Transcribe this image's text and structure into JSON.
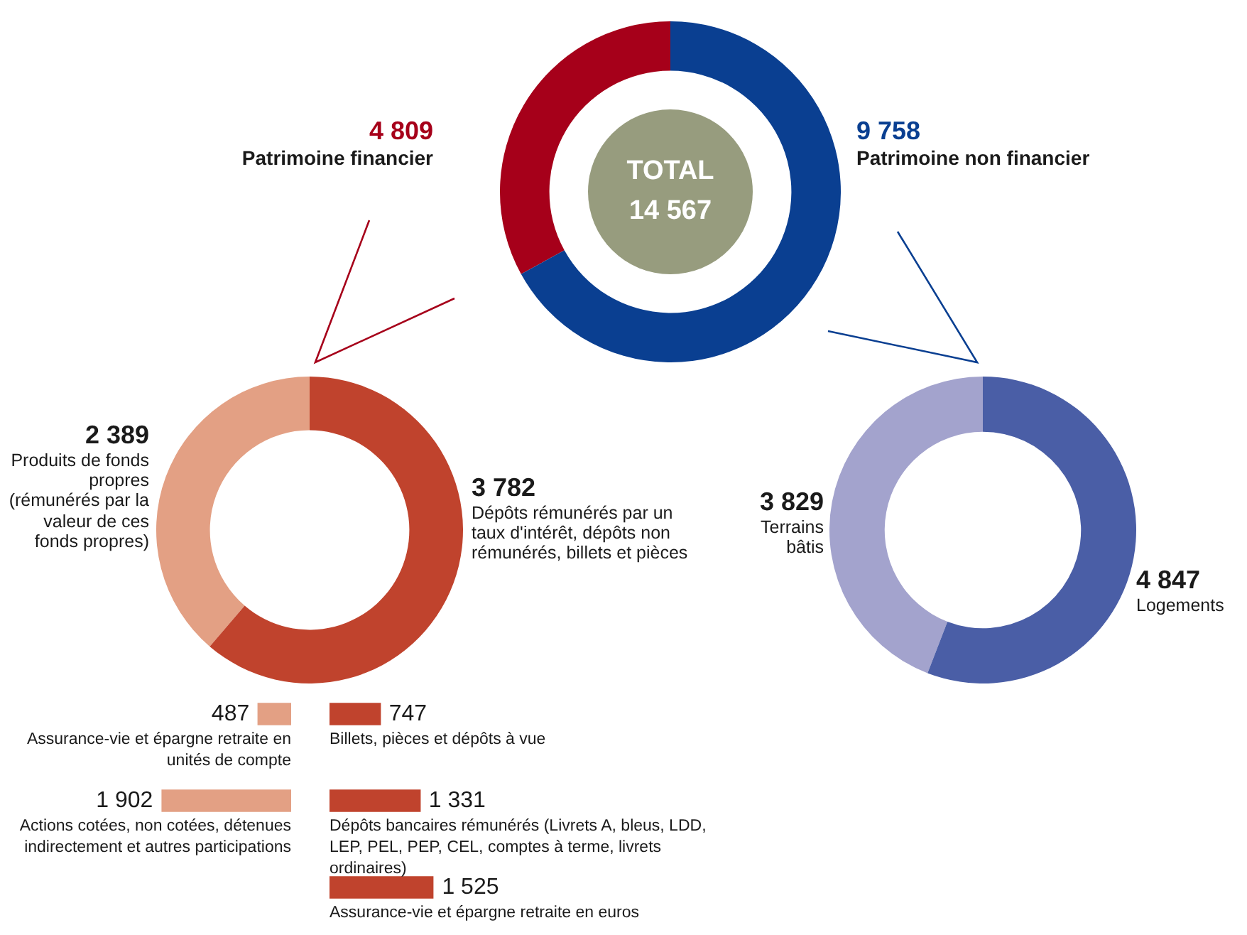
{
  "chart_data": [
    {
      "type": "donut",
      "categories": [
        "Patrimoine financier",
        "Patrimoine non financier"
      ],
      "values": [
        4809,
        9758
      ],
      "value_labels": [
        "4 809",
        "9 758"
      ],
      "colors": [
        "#a6001a",
        "#0a3f91"
      ],
      "annotations": [
        "TOTAL\n14 567"
      ],
      "legend": false
    },
    {
      "type": "donut",
      "categories": [
        "Produits de fonds propres (rémunérés par la valeur de ces fonds propres)",
        "Dépôts rémunérés par un taux d'intérêt, dépôts non rémunérés, billets et pièces"
      ],
      "values": [
        2389,
        3782
      ],
      "value_labels": [
        "2 389",
        "3 782"
      ],
      "colors": [
        "#e3a084",
        "#c0432d"
      ],
      "legend": false
    },
    {
      "type": "donut",
      "categories": [
        "Terrains bâtis",
        "Logements"
      ],
      "values": [
        3829,
        4847
      ],
      "value_labels": [
        "3 829",
        "4 847"
      ],
      "colors": [
        "#a3a3cd",
        "#4a5ea6"
      ],
      "legend": false
    },
    {
      "type": "bar",
      "orientation": "horizontal",
      "categories": [
        "Assurance-vie et épargne retraite en unités de compte",
        "Actions cotées, non cotées, détenues indirectement et autres participations"
      ],
      "values": [
        487,
        1902
      ],
      "value_labels": [
        "487",
        "1 902"
      ],
      "color": "#e3a084",
      "legend": false
    },
    {
      "type": "bar",
      "orientation": "horizontal",
      "categories": [
        "Billets, pièces et dépôts à vue",
        "Dépôts bancaires rémunérés (Livrets A, bleus, LDD, LEP, PEL, PEP, CEL, comptes à terme, livrets ordinaires)",
        "Assurance-vie et épargne retraite en euros"
      ],
      "values": [
        747,
        1331,
        1525
      ],
      "value_labels": [
        "747",
        "1 331",
        "1 525"
      ],
      "color": "#c0432d",
      "legend": false
    }
  ]
}
